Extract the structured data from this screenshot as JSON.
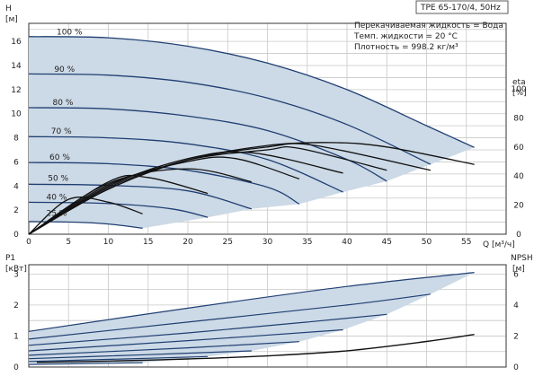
{
  "model_box": "TPE 65-170/4, 50Hz",
  "info_lines": [
    "Перекачиваемая жидкость = Вода",
    "Темп. жидкости = 20 °C",
    "Плотность = 998.2 кг/м³"
  ],
  "colors": {
    "area_fill": "#ccd9e6",
    "curve_blue": "#1f3f72",
    "curve_black": "#111111"
  },
  "chart_data": [
    {
      "type": "line",
      "ylabel_main": "H",
      "ylabel_unit": "[м]",
      "y2label_main": "eta",
      "y2label_unit": "[%]",
      "x_unit": "Q [м³/ч]",
      "xlim": [
        0,
        60
      ],
      "ylim": [
        0,
        17.5
      ],
      "y2lim": [
        0,
        145
      ],
      "x_ticks": [
        0,
        5,
        10,
        15,
        20,
        25,
        30,
        35,
        40,
        45,
        50,
        55
      ],
      "y_ticks": [
        0,
        2,
        4,
        6,
        8,
        10,
        12,
        14,
        16
      ],
      "y2_ticks": [
        0,
        20,
        40,
        60,
        80,
        100
      ],
      "grid": true,
      "speed_labels": [
        {
          "text": "100 %",
          "x": 3.5,
          "y": 16.35
        },
        {
          "text": "90 %",
          "x": 3.2,
          "y": 13.25
        },
        {
          "text": "80 %",
          "x": 3.0,
          "y": 10.5
        },
        {
          "text": "70 %",
          "x": 2.8,
          "y": 8.1
        },
        {
          "text": "60 %",
          "x": 2.6,
          "y": 5.95
        },
        {
          "text": "50 %",
          "x": 2.4,
          "y": 4.2
        },
        {
          "text": "40 %",
          "x": 2.2,
          "y": 2.65
        },
        {
          "text": "25 %",
          "x": 2.2,
          "y": 1.3
        }
      ],
      "head_series": [
        {
          "name": "100 %",
          "x": [
            0,
            10,
            20,
            30,
            40,
            50,
            56
          ],
          "y": [
            16.4,
            16.3,
            15.6,
            14.2,
            12.0,
            9.0,
            7.2
          ]
        },
        {
          "name": "90 %",
          "x": [
            0,
            10,
            20,
            30,
            40,
            50.5
          ],
          "y": [
            13.3,
            13.2,
            12.6,
            11.3,
            9.1,
            5.8
          ]
        },
        {
          "name": "80 %",
          "x": [
            0,
            10,
            20,
            30,
            40,
            45
          ],
          "y": [
            10.5,
            10.4,
            9.8,
            8.6,
            6.2,
            4.4
          ]
        },
        {
          "name": "70 %",
          "x": [
            0,
            10,
            20,
            30,
            39.5
          ],
          "y": [
            8.1,
            8.0,
            7.5,
            6.2,
            3.5
          ]
        },
        {
          "name": "60 %",
          "x": [
            0,
            10,
            20,
            30,
            34
          ],
          "y": [
            5.95,
            5.85,
            5.3,
            3.9,
            2.5
          ]
        },
        {
          "name": "50 %",
          "x": [
            0,
            10,
            20,
            28
          ],
          "y": [
            4.15,
            4.05,
            3.6,
            2.1
          ]
        },
        {
          "name": "40 %",
          "x": [
            0,
            10,
            18,
            22.5
          ],
          "y": [
            2.65,
            2.55,
            2.1,
            1.4
          ]
        },
        {
          "name": "25 %",
          "x": [
            0,
            6,
            10,
            14.3
          ],
          "y": [
            1.05,
            1.0,
            0.85,
            0.5
          ]
        }
      ],
      "efficiency_series": [
        {
          "name": "100 %",
          "x": [
            0,
            10,
            20,
            30,
            38,
            45,
            56
          ],
          "y": [
            0,
            31,
            51,
            61,
            63,
            60,
            48
          ]
        },
        {
          "name": "90 %",
          "x": [
            0,
            10,
            20,
            30,
            36,
            50.5
          ],
          "y": [
            0,
            31,
            51,
            60,
            61,
            44
          ]
        },
        {
          "name": "80 %",
          "x": [
            0,
            10,
            20,
            30,
            34,
            45
          ],
          "y": [
            0,
            32,
            51,
            58,
            59,
            44
          ]
        },
        {
          "name": "70 %",
          "x": [
            0,
            10,
            20,
            28,
            39.5
          ],
          "y": [
            0,
            33,
            52,
            56,
            42
          ]
        },
        {
          "name": "60 %",
          "x": [
            0,
            10,
            20,
            26,
            34
          ],
          "y": [
            0,
            34,
            50,
            52,
            38
          ]
        },
        {
          "name": "50 %",
          "x": [
            0,
            10,
            20,
            28
          ],
          "y": [
            0,
            35,
            45,
            36
          ]
        },
        {
          "name": "40 %",
          "x": [
            0,
            10,
            15,
            22.5
          ],
          "y": [
            0,
            36,
            39,
            28
          ]
        },
        {
          "name": "25 %",
          "x": [
            0,
            5,
            10,
            14.3
          ],
          "y": [
            0,
            24,
            22,
            14
          ]
        }
      ]
    },
    {
      "type": "line",
      "ylabel_main": "P1",
      "ylabel_unit": "[кВт]",
      "y2label_main": "NPSH",
      "y2label_unit": "[м]",
      "xlim": [
        0,
        60
      ],
      "ylim": [
        0,
        3.3
      ],
      "y2lim": [
        0,
        6.6
      ],
      "y_ticks": [
        0,
        1,
        2,
        3
      ],
      "y2_ticks": [
        0,
        2,
        4,
        6
      ],
      "grid": true,
      "power_series": [
        {
          "name": "100 %",
          "x": [
            0,
            20,
            40,
            56
          ],
          "y": [
            1.15,
            1.9,
            2.6,
            3.05
          ]
        },
        {
          "name": "90 %",
          "x": [
            0,
            20,
            40,
            50.5
          ],
          "y": [
            0.9,
            1.45,
            2.0,
            2.35
          ]
        },
        {
          "name": "80 %",
          "x": [
            0,
            20,
            35,
            45
          ],
          "y": [
            0.7,
            1.1,
            1.45,
            1.7
          ]
        },
        {
          "name": "70 %",
          "x": [
            0,
            20,
            39.5
          ],
          "y": [
            0.52,
            0.85,
            1.2
          ]
        },
        {
          "name": "60 %",
          "x": [
            0,
            20,
            34
          ],
          "y": [
            0.38,
            0.62,
            0.82
          ]
        },
        {
          "name": "50 %",
          "x": [
            0,
            15,
            28
          ],
          "y": [
            0.27,
            0.4,
            0.52
          ]
        },
        {
          "name": "40 %",
          "x": [
            0,
            12,
            22.5
          ],
          "y": [
            0.18,
            0.26,
            0.34
          ]
        },
        {
          "name": "25 %",
          "x": [
            0,
            7,
            14.3
          ],
          "y": [
            0.08,
            0.11,
            0.14
          ]
        }
      ],
      "npsh_series": {
        "name": "NPSH",
        "x": [
          1,
          10,
          20,
          30,
          40,
          50,
          56
        ],
        "y": [
          0.3,
          0.38,
          0.52,
          0.72,
          1.05,
          1.65,
          2.1
        ]
      }
    }
  ]
}
